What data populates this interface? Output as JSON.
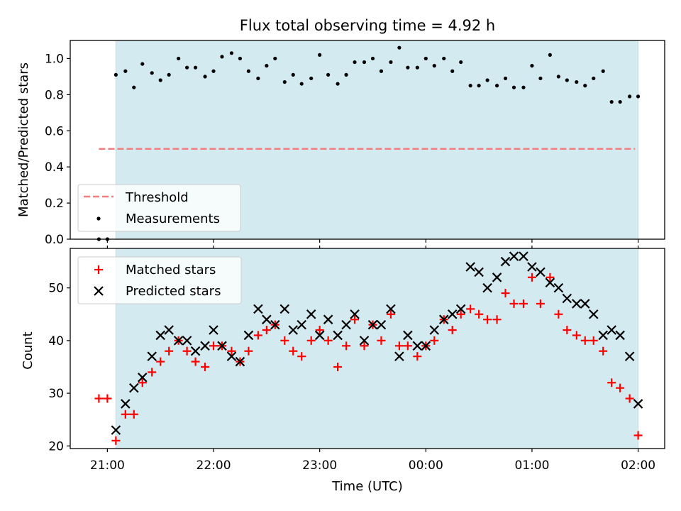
{
  "chart_data": [
    {
      "type": "scatter",
      "title": "Flux total observing time = 4.92 h",
      "ylabel": "Matched/Predicted stars",
      "xlabel": "",
      "ylim": [
        0.0,
        1.1
      ],
      "xlim": [
        -0.35,
        5.25
      ],
      "yticks": [
        0.0,
        0.2,
        0.4,
        0.6,
        0.8,
        1.0
      ],
      "ytick_labels": [
        "0.0",
        "0.2",
        "0.4",
        "0.6",
        "0.8",
        "1.0"
      ],
      "shaded_span": {
        "x0": 0.08,
        "x1": 5.0,
        "color": "#d3eaf0"
      },
      "threshold": {
        "name": "Threshold",
        "y": 0.5,
        "x0": -0.08,
        "x1": 4.97,
        "color": "#f08080"
      },
      "legend": {
        "placement": "lower-left",
        "entries": [
          "Threshold",
          "Measurements"
        ]
      },
      "series": [
        {
          "name": "Measurements",
          "marker": "dot",
          "color": "#000000",
          "x": [
            -0.08,
            0.0,
            0.08,
            0.17,
            0.25,
            0.33,
            0.42,
            0.5,
            0.58,
            0.67,
            0.75,
            0.83,
            0.92,
            1.0,
            1.08,
            1.17,
            1.25,
            1.33,
            1.42,
            1.5,
            1.58,
            1.67,
            1.75,
            1.83,
            1.92,
            2.0,
            2.08,
            2.17,
            2.25,
            2.33,
            2.42,
            2.5,
            2.58,
            2.67,
            2.75,
            2.83,
            2.92,
            3.0,
            3.08,
            3.17,
            3.25,
            3.33,
            3.42,
            3.5,
            3.58,
            3.67,
            3.75,
            3.83,
            3.92,
            4.0,
            4.08,
            4.17,
            4.25,
            4.33,
            4.42,
            4.5,
            4.58,
            4.67,
            4.75,
            4.83,
            4.92,
            5.0
          ],
          "y": [
            0.0,
            0.0,
            0.91,
            0.93,
            0.84,
            0.97,
            0.92,
            0.88,
            0.91,
            1.0,
            0.95,
            0.95,
            0.9,
            0.93,
            1.01,
            1.03,
            1.0,
            0.93,
            0.89,
            0.96,
            1.0,
            0.87,
            0.91,
            0.86,
            0.89,
            1.02,
            0.91,
            0.86,
            0.91,
            0.98,
            0.98,
            1.0,
            0.93,
            0.98,
            1.06,
            0.95,
            0.95,
            1.0,
            0.96,
            1.0,
            0.93,
            0.98,
            0.85,
            0.85,
            0.88,
            0.85,
            0.89,
            0.84,
            0.84,
            0.96,
            0.89,
            1.02,
            0.9,
            0.88,
            0.87,
            0.85,
            0.89,
            0.93,
            0.76,
            0.76,
            0.79,
            0.79
          ]
        }
      ]
    },
    {
      "type": "scatter",
      "title": "",
      "ylabel": "Count",
      "xlabel": "Time (UTC)",
      "ylim": [
        19.5,
        57.5
      ],
      "xlim": [
        -0.35,
        5.25
      ],
      "yticks": [
        20,
        30,
        40,
        50
      ],
      "ytick_labels": [
        "20",
        "30",
        "40",
        "50"
      ],
      "xticks": [
        0,
        1,
        2,
        3,
        4,
        5
      ],
      "xtick_labels": [
        "21:00",
        "22:00",
        "23:00",
        "00:00",
        "01:00",
        "02:00"
      ],
      "shaded_span": {
        "x0": 0.08,
        "x1": 5.0,
        "color": "#d3eaf0"
      },
      "legend": {
        "placement": "top-left",
        "entries": [
          "Matched stars",
          "Predicted stars"
        ]
      },
      "series": [
        {
          "name": "Matched stars",
          "marker": "plus",
          "color": "#ff0000",
          "x": [
            -0.08,
            0.0,
            0.08,
            0.17,
            0.25,
            0.33,
            0.42,
            0.5,
            0.58,
            0.67,
            0.75,
            0.83,
            0.92,
            1.0,
            1.08,
            1.17,
            1.25,
            1.33,
            1.42,
            1.5,
            1.58,
            1.67,
            1.75,
            1.83,
            1.92,
            2.0,
            2.08,
            2.17,
            2.25,
            2.33,
            2.42,
            2.5,
            2.58,
            2.67,
            2.75,
            2.83,
            2.92,
            3.0,
            3.08,
            3.17,
            3.25,
            3.33,
            3.42,
            3.5,
            3.58,
            3.67,
            3.75,
            3.83,
            3.92,
            4.0,
            4.08,
            4.17,
            4.25,
            4.33,
            4.42,
            4.5,
            4.58,
            4.67,
            4.75,
            4.83,
            4.92,
            5.0
          ],
          "y": [
            29,
            29,
            21,
            26,
            26,
            32,
            34,
            36,
            38,
            40,
            38,
            36,
            35,
            39,
            39,
            38,
            36,
            38,
            41,
            42,
            43,
            40,
            38,
            37,
            40,
            42,
            40,
            35,
            39,
            44,
            39,
            43,
            40,
            45,
            39,
            39,
            37,
            39,
            40,
            44,
            42,
            45,
            46,
            45,
            44,
            44,
            49,
            47,
            47,
            52,
            47,
            52,
            45,
            42,
            41,
            40,
            40,
            38,
            32,
            31,
            29,
            22
          ]
        },
        {
          "name": "Predicted stars",
          "marker": "x",
          "color": "#000000",
          "x": [
            0.08,
            0.17,
            0.25,
            0.33,
            0.42,
            0.5,
            0.58,
            0.67,
            0.75,
            0.83,
            0.92,
            1.0,
            1.08,
            1.17,
            1.25,
            1.33,
            1.42,
            1.5,
            1.58,
            1.67,
            1.75,
            1.83,
            1.92,
            2.0,
            2.08,
            2.17,
            2.25,
            2.33,
            2.42,
            2.5,
            2.58,
            2.67,
            2.75,
            2.83,
            2.92,
            3.0,
            3.08,
            3.17,
            3.25,
            3.33,
            3.42,
            3.5,
            3.58,
            3.67,
            3.75,
            3.83,
            3.92,
            4.0,
            4.08,
            4.17,
            4.25,
            4.33,
            4.42,
            4.5,
            4.58,
            4.67,
            4.75,
            4.83,
            4.92,
            5.0
          ],
          "y": [
            23,
            28,
            31,
            33,
            37,
            41,
            42,
            40,
            40,
            38,
            39,
            42,
            39,
            37,
            36,
            41,
            46,
            44,
            43,
            46,
            42,
            43,
            45,
            41,
            44,
            41,
            43,
            45,
            40,
            43,
            43,
            46,
            37,
            41,
            39,
            39,
            42,
            44,
            45,
            46,
            54,
            53,
            50,
            52,
            55,
            56,
            56,
            54,
            53,
            51,
            50,
            48,
            47,
            47,
            45,
            41,
            42,
            41,
            37,
            28
          ]
        }
      ]
    }
  ]
}
